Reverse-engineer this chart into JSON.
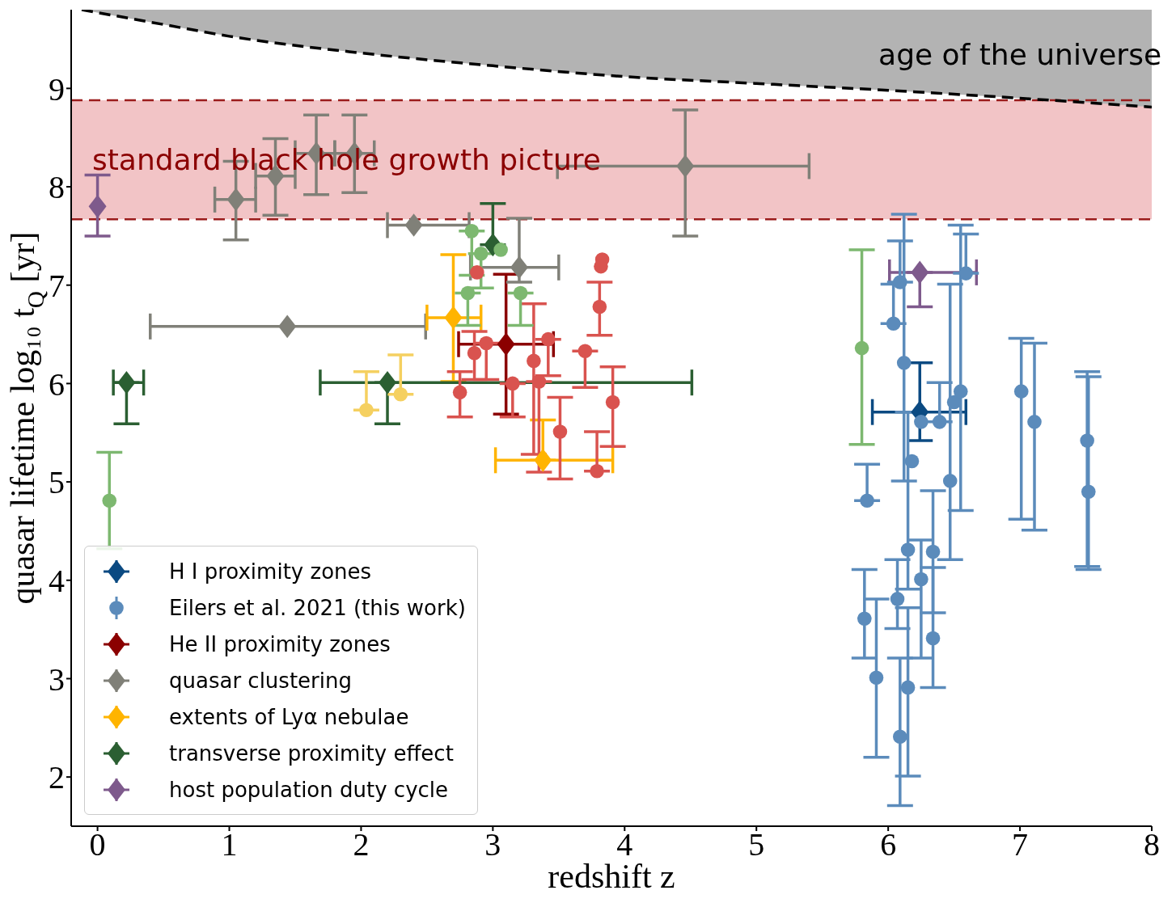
{
  "chart_data": {
    "type": "scatter",
    "xlabel": "redshift z",
    "ylabel": "quasar lifetime log₁₀ t$_{Q}$ [yr]",
    "xlim": [
      -0.2,
      8
    ],
    "xticks": [
      0,
      1,
      2,
      3,
      4,
      5,
      6,
      7,
      8
    ],
    "ylim": [
      1.5,
      9.8
    ],
    "yticks": [
      2,
      3,
      4,
      5,
      6,
      7,
      8,
      9
    ],
    "legend": "bottom left",
    "bands": [
      {
        "axis": "y",
        "from": 7.67,
        "to": 8.88,
        "label": "standard black hole growth picture",
        "color": "#f2c4c6"
      }
    ],
    "ref_lines": [
      {
        "axis": "y",
        "value": 7.67,
        "color": "#9b1c1c",
        "line_style": "dashed"
      },
      {
        "axis": "y",
        "value": 8.88,
        "color": "#9b1c1c",
        "line_style": "dashed"
      }
    ],
    "series": [
      {
        "name": "H I proximity zones",
        "color": "#0b4a82",
        "marker": "diamond",
        "x": [
          6.24
        ],
        "values": [
          5.71
        ],
        "errors": [
          [
            5.42,
            6.21
          ]
        ],
        "xerrors": [
          [
            5.88,
            6.59
          ]
        ]
      },
      {
        "name": "Eilers et al. 2021 (this work)",
        "color": "#5b8bbb",
        "marker": "circle",
        "x": [
          5.84,
          5.82,
          6.07,
          6.09,
          6.15,
          6.25,
          6.47,
          6.18,
          6.25,
          6.5
        ],
        "values": [
          4.81,
          3.61,
          3.81,
          2.41,
          2.91,
          4.01,
          5.01,
          5.21,
          5.61,
          5.81
        ],
        "errors": [
          [
            4.81,
            5.18
          ],
          [
            3.21,
            4.11
          ],
          [
            3.51,
            4.21
          ],
          [
            1.71,
            3.21
          ],
          [
            2.01,
            3.72
          ],
          [
            3.21,
            4.41
          ],
          [
            4.21,
            7.01
          ],
          null,
          null,
          null
        ]
      },
      {
        "name": "He II proximity zones",
        "color": "#8b0000",
        "marker": "diamond",
        "x": [
          3.1
        ],
        "values": [
          6.4
        ],
        "errors": [
          [
            5.69,
            7.11
          ]
        ],
        "xerrors": [
          [
            2.74,
            3.46
          ]
        ]
      },
      {
        "name": "quasar clustering",
        "color": "#808078",
        "marker": "diamond",
        "x": [
          1.05,
          1.35,
          1.66,
          1.95,
          2.4,
          3.2,
          1.44,
          4.46
        ],
        "values": [
          7.87,
          8.11,
          8.34,
          8.34,
          7.61,
          7.18,
          6.58,
          8.21
        ],
        "errors": [
          [
            7.46,
            8.26
          ],
          [
            7.71,
            8.49
          ],
          [
            7.92,
            8.73
          ],
          [
            7.94,
            8.73
          ],
          null,
          [
            7.03,
            7.68
          ],
          null,
          [
            7.5,
            8.78
          ]
        ],
        "xerrors": [
          [
            0.89,
            1.2
          ],
          [
            1.2,
            1.5
          ],
          [
            1.5,
            1.8
          ],
          [
            1.8,
            2.1
          ],
          [
            2.2,
            2.82
          ],
          [
            2.83,
            3.5
          ],
          [
            0.4,
            2.49
          ],
          [
            3.49,
            5.4
          ]
        ]
      },
      {
        "name": "extents of Lyα nebulae",
        "color": "#ffb400",
        "marker": "diamond",
        "x": [
          2.7,
          3.38
        ],
        "values": [
          6.67,
          5.22
        ],
        "errors": [
          [
            6.02,
            7.31
          ],
          [
            5.22,
            5.63
          ]
        ],
        "xerrors": [
          [
            2.5,
            2.91
          ],
          [
            3.02,
            3.91
          ]
        ]
      },
      {
        "name": "transverse proximity effect",
        "color": "#2b5f32",
        "marker": "diamond",
        "x": [
          0.22,
          2.2,
          3.0
        ],
        "values": [
          6.01,
          6.01,
          7.41
        ],
        "errors": [
          [
            5.59,
            6.01
          ],
          [
            5.59,
            6.01
          ],
          [
            7.41,
            7.83
          ]
        ],
        "xerrors": [
          [
            0.12,
            0.35
          ],
          [
            1.69,
            4.51
          ],
          null
        ]
      },
      {
        "name": "host population duty cycle",
        "color": "#7e5a8c",
        "marker": "diamond",
        "x": [
          0.0,
          6.24
        ],
        "values": [
          7.8,
          7.13
        ],
        "errors": [
          [
            7.5,
            8.12
          ],
          [
            6.78,
            7.13
          ]
        ],
        "xerrors": [
          null,
          [
            6.01,
            6.67
          ]
        ]
      },
      {
        "color": "#5b8bbb",
        "marker": "circle",
        "x": [
          6.09,
          6.04,
          6.12,
          6.59,
          6.55,
          6.39,
          7.01,
          7.11,
          7.51,
          7.52,
          6.15,
          6.34,
          6.34,
          5.91
        ],
        "values": [
          7.03,
          6.61,
          6.21,
          7.12,
          5.92,
          5.61,
          5.92,
          5.61,
          5.42,
          4.9,
          4.31,
          4.29,
          3.41,
          3.01
        ],
        "errors": [
          [
            7.03,
            7.45
          ],
          [
            6.61,
            7.01
          ],
          [
            5.01,
            7.72
          ],
          [
            7.12,
            7.52
          ],
          [
            4.71,
            7.61
          ],
          [
            5.61,
            6.01
          ],
          [
            4.62,
            6.46
          ],
          [
            4.51,
            6.41
          ],
          [
            4.14,
            6.12
          ],
          [
            4.11,
            6.07
          ],
          [
            3.91,
            5.71
          ],
          [
            3.67,
            4.91
          ],
          [
            2.91,
            4.13
          ],
          [
            2.2,
            3.81
          ]
        ]
      },
      {
        "color": "#d9534f",
        "marker": "circle",
        "x": [
          3.83,
          3.82,
          3.81,
          3.7,
          3.91,
          2.75,
          2.86,
          2.95,
          3.15,
          3.31,
          3.35,
          3.42,
          3.51,
          3.79,
          2.88
        ],
        "values": [
          7.26,
          7.19,
          6.78,
          6.33,
          5.81,
          5.91,
          6.31,
          6.41,
          6.0,
          6.23,
          6.02,
          6.45,
          5.51,
          5.11,
          7.13
        ],
        "errors": [
          null,
          null,
          [
            6.49,
            7.03
          ],
          [
            5.96,
            6.33
          ],
          [
            5.36,
            6.17
          ],
          [
            5.66,
            6.12
          ],
          [
            6.04,
            6.53
          ],
          [
            6.04,
            6.41
          ],
          [
            5.66,
            6.0
          ],
          [
            5.28,
            6.81
          ],
          [
            5.1,
            6.02
          ],
          [
            6.08,
            6.45
          ],
          [
            5.03,
            5.86
          ],
          [
            5.11,
            5.51
          ],
          null
        ]
      },
      {
        "color": "#7db870",
        "marker": "circle",
        "x": [
          0.09,
          5.8,
          2.84,
          2.91,
          3.06,
          2.81,
          3.21
        ],
        "values": [
          4.81,
          6.36,
          7.55,
          7.32,
          7.36,
          6.92,
          6.92
        ],
        "errors": [
          [
            4.32,
            5.3
          ],
          [
            5.38,
            7.36
          ],
          [
            7.1,
            7.55
          ],
          [
            6.97,
            7.32
          ],
          null,
          [
            6.59,
            6.92
          ],
          [
            6.59,
            6.92
          ]
        ]
      },
      {
        "color": "#f5d060",
        "marker": "circle",
        "x": [
          2.04,
          2.3
        ],
        "values": [
          5.73,
          5.89
        ],
        "errors": [
          [
            5.73,
            6.12
          ],
          [
            5.89,
            6.29
          ]
        ]
      },
      {
        "type": "line",
        "name": "age of the universe",
        "color": "#000000",
        "line_style": "dashed",
        "x": [
          -0.12,
          0.5,
          1,
          2,
          3,
          4,
          5,
          6,
          7,
          8
        ],
        "values": [
          9.8,
          9.65,
          9.53,
          9.36,
          9.23,
          9.12,
          9.05,
          8.98,
          8.9,
          8.81
        ]
      }
    ]
  }
}
